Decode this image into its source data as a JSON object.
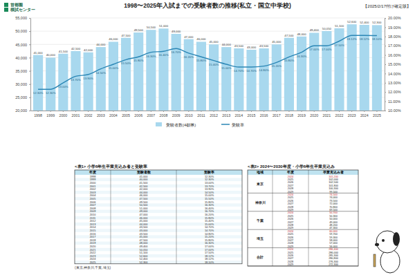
{
  "header": {
    "logo": [
      "首都圏",
      "模試センター"
    ],
    "date_note": "【2025/2/17付け確定版】"
  },
  "chart_data": {
    "type": "bar",
    "title": "1998〜2025年入試までの受験者数の推移(私立・国立中学校)",
    "categories": [
      "1998",
      "1999",
      "2000",
      "2001",
      "2002",
      "2003",
      "2004",
      "2005",
      "2006",
      "2007",
      "2008",
      "2009",
      "2010",
      "2011",
      "2012",
      "2013",
      "2014",
      "2015",
      "2016",
      "2017",
      "2018",
      "2019",
      "2020",
      "2021",
      "2022",
      "2023",
      "2024",
      "2025"
    ],
    "series": [
      {
        "name": "受験者数(4都県)",
        "type": "bar",
        "color": "#a8d8ee",
        "values": [
          41000,
          40000,
          41500,
          42500,
          42000,
          44000,
          46000,
          47500,
          49500,
          50500,
          51000,
          49000,
          47000,
          46000,
          45000,
          44000,
          43500,
          43000,
          43500,
          45000,
          47500,
          48000,
          49400,
          50050,
          51100,
          52600,
          52400,
          52300
        ],
        "value_labels": [
          "41,000",
          "40,000",
          "41,500",
          "42,500",
          "42,000",
          "44,000",
          "46,000",
          "47,500",
          "49,500",
          "50,500",
          "51,000",
          "49,000",
          "47,000",
          "46,000",
          "45,000",
          "44,000",
          "43,500",
          "43,000",
          "43,500",
          "45,000",
          "47,500",
          "48,000",
          "49,400",
          "50,050",
          "51,100",
          "52,600",
          "52,400",
          "52,300"
        ]
      },
      {
        "name": "受験率",
        "type": "line",
        "axis": "y2",
        "color": "#2b86b5",
        "values": [
          12.3,
          12.3,
          13.0,
          13.7,
          13.9,
          14.5,
          15.0,
          15.5,
          15.8,
          16.3,
          16.4,
          16.7,
          16.2,
          15.8,
          15.4,
          15.0,
          14.7,
          14.7,
          14.8,
          15.2,
          15.8,
          16.3,
          17.0,
          17.0,
          17.5,
          18.12,
          18.12,
          18.1
        ],
        "value_labels": [
          "12.30%",
          "12.30%",
          "13.00%",
          "13.70%",
          "13.90%",
          "14.50%",
          "15.00%",
          "15.50%",
          "15.80%",
          "16.30%",
          "16.40%",
          "16.70%",
          "16.20%",
          "15.80%",
          "15.40%",
          "15.00%",
          "14.70%",
          "14.70%",
          "14.80%",
          "15.20%",
          "15.80%",
          "16.30%",
          "17.00%",
          "17.00%",
          "17.50%",
          "18.12%",
          "18.12%",
          "18.10%"
        ]
      }
    ],
    "ylim": [
      20000,
      55000
    ],
    "yticks": [
      {
        "value": 20000,
        "label": "20,000"
      },
      {
        "value": 25000,
        "label": "25,000"
      },
      {
        "value": 30000,
        "label": "30,000"
      },
      {
        "value": 35000,
        "label": "35,000"
      },
      {
        "value": 40000,
        "label": "40,000"
      },
      {
        "value": 45000,
        "label": "45,000"
      },
      {
        "value": 50000,
        "label": "50,000"
      },
      {
        "value": 55000,
        "label": "55,000"
      }
    ],
    "y2lim": [
      10,
      20
    ],
    "y2ticks": [
      {
        "value": 10,
        "label": "10.00%"
      },
      {
        "value": 11,
        "label": "11.00%"
      },
      {
        "value": 12,
        "label": "12.00%"
      },
      {
        "value": 13,
        "label": "13.00%"
      },
      {
        "value": 14,
        "label": "14.00%"
      },
      {
        "value": 15,
        "label": "15.00%"
      },
      {
        "value": 16,
        "label": "16.00%"
      },
      {
        "value": 17,
        "label": "17.00%"
      },
      {
        "value": 18,
        "label": "18.00%"
      },
      {
        "value": 19,
        "label": "19.00%"
      },
      {
        "value": 20,
        "label": "20.00%"
      }
    ],
    "grid": true,
    "legend": "bottom",
    "data_labels": true
  },
  "table1": {
    "caption": "<表1> 小学6年生卒業見込み者と受験率",
    "headers": [
      "年度",
      "受験者数",
      "受験率"
    ],
    "rows": [
      [
        "1998",
        "41,000",
        "12.30%"
      ],
      [
        "1999",
        "40,000",
        "12.30%"
      ],
      [
        "2000",
        "41,500",
        "13.00%"
      ],
      [
        "2001",
        "42,500",
        "13.70%"
      ],
      [
        "2002",
        "42,000",
        "13.90%"
      ],
      [
        "2003",
        "44,000",
        "14.50%"
      ],
      [
        "2004",
        "46,000",
        "15.00%"
      ],
      [
        "2005",
        "47,500",
        "15.50%"
      ],
      [
        "2006",
        "49,500",
        "15.80%"
      ],
      [
        "2007",
        "50,500",
        "16.30%"
      ],
      [
        "2008",
        "51,000",
        "16.40%"
      ],
      [
        "2009",
        "49,000",
        "16.70%"
      ],
      [
        "2010",
        "47,000",
        "16.20%"
      ],
      [
        "2011",
        "46,000",
        "15.80%"
      ],
      [
        "2012",
        "45,000",
        "15.40%"
      ],
      [
        "2013",
        "44,000",
        "15.00%"
      ],
      [
        "2014",
        "43,500",
        "14.70%"
      ],
      [
        "2015",
        "43,000",
        "14.70%"
      ],
      [
        "2016",
        "43,500",
        "14.80%"
      ],
      [
        "2017",
        "45,000",
        "15.20%"
      ],
      [
        "2018",
        "47,500",
        "15.80%"
      ],
      [
        "2019",
        "48,000",
        "16.30%"
      ],
      [
        "2020",
        "49,400",
        "17.00%"
      ],
      [
        "2021",
        "50,050",
        "17.00%"
      ],
      [
        "2022",
        "51,100",
        "17.50%"
      ],
      [
        "2023",
        "52,600",
        "18.12%"
      ],
      [
        "2024",
        "52,400",
        "18.12%"
      ],
      [
        "2025",
        "52,300",
        "18.10%"
      ]
    ],
    "note": "(東京,神奈川,千葉,埼玉)"
  },
  "table2": {
    "caption": "<表2> 2024〜2030年度・小学6年生卒業見込み",
    "headers": [
      "地域",
      "年度",
      "卒業見込み者"
    ],
    "groups": [
      {
        "region": "東京",
        "rows": [
          [
            "2024",
            "101,200"
          ],
          [
            "2025",
            "102,000"
          ],
          [
            "2026",
            "102,500"
          ],
          [
            "2027",
            "101,800"
          ],
          [
            "2028",
            "100,300"
          ],
          [
            "2029",
            "99,500"
          ]
        ]
      },
      {
        "region": "神奈川",
        "rows": [
          [
            "2024",
            "74,500"
          ],
          [
            "2025",
            "74,000"
          ],
          [
            "2026",
            "73,500"
          ],
          [
            "2027",
            "72,000"
          ],
          [
            "2028",
            "70,800"
          ],
          [
            "2029",
            "69,500"
          ]
        ]
      },
      {
        "region": "千葉",
        "rows": [
          [
            "2024",
            "50,700"
          ],
          [
            "2025",
            "50,300"
          ],
          [
            "2026",
            "50,000"
          ],
          [
            "2027",
            "49,000"
          ],
          [
            "2028",
            "48,200"
          ],
          [
            "2029",
            "47,300"
          ]
        ]
      },
      {
        "region": "埼玉",
        "rows": [
          [
            "2024",
            "60,000"
          ],
          [
            "2025",
            "59,700"
          ],
          [
            "2026",
            "59,300"
          ],
          [
            "2027",
            "58,000"
          ],
          [
            "2028",
            "57,000"
          ],
          [
            "2029",
            "56,000"
          ]
        ]
      },
      {
        "region": "合計",
        "rows": [
          [
            "2024",
            "286,400"
          ],
          [
            "2025",
            "286,000"
          ],
          [
            "2026",
            "285,300"
          ],
          [
            "2027",
            "280,800"
          ],
          [
            "2028",
            "276,300"
          ],
          [
            "2029",
            "272,300"
          ]
        ]
      }
    ]
  }
}
